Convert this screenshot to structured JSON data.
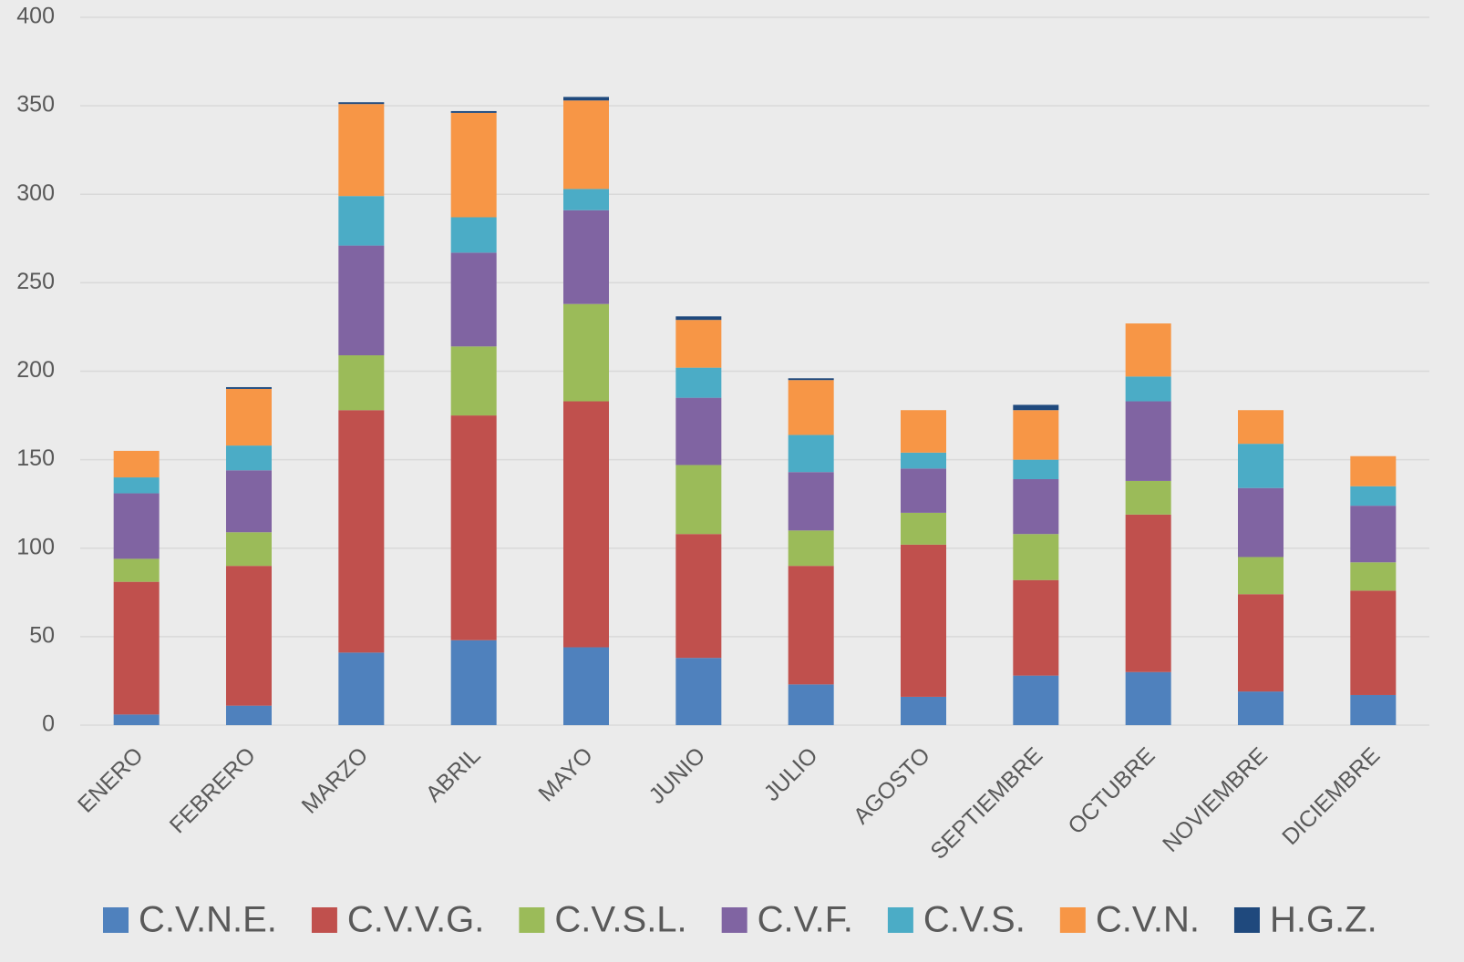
{
  "chart_data": {
    "type": "stacked_bar",
    "categories": [
      "ENERO",
      "FEBRERO",
      "MARZO",
      "ABRIL",
      "MAYO",
      "JUNIO",
      "JULIO",
      "AGOSTO",
      "SEPTIEMBRE",
      "OCTUBRE",
      "NOVIEMBRE",
      "DICIEMBRE"
    ],
    "series": [
      {
        "name": "C.V.N.E.",
        "color": "#4f81bd",
        "values": [
          6,
          11,
          41,
          48,
          44,
          38,
          23,
          16,
          28,
          30,
          19,
          17
        ]
      },
      {
        "name": "C.V.V.G.",
        "color": "#c0504d",
        "values": [
          75,
          79,
          137,
          127,
          139,
          70,
          67,
          86,
          54,
          89,
          55,
          59
        ]
      },
      {
        "name": "C.V.S.L.",
        "color": "#9bbb59",
        "values": [
          13,
          19,
          31,
          39,
          55,
          39,
          20,
          18,
          26,
          19,
          21,
          16
        ]
      },
      {
        "name": "C.V.F.",
        "color": "#8064a2",
        "values": [
          37,
          35,
          62,
          53,
          53,
          38,
          33,
          25,
          31,
          45,
          39,
          32
        ]
      },
      {
        "name": "C.V.S.",
        "color": "#4bacc6",
        "values": [
          9,
          14,
          28,
          20,
          12,
          17,
          21,
          9,
          11,
          14,
          25,
          11
        ]
      },
      {
        "name": "C.V.N.",
        "color": "#f79646",
        "values": [
          15,
          32,
          52,
          59,
          50,
          27,
          31,
          24,
          28,
          30,
          19,
          17
        ]
      },
      {
        "name": "H.G.Z.",
        "color": "#1f497d",
        "values": [
          0,
          1,
          1,
          1,
          2,
          2,
          1,
          0,
          3,
          0,
          0,
          0
        ]
      }
    ],
    "ylim": [
      0,
      400
    ],
    "yticks": [
      0,
      50,
      100,
      150,
      200,
      250,
      300,
      350,
      400
    ],
    "grid": true,
    "legend": "bottom"
  }
}
